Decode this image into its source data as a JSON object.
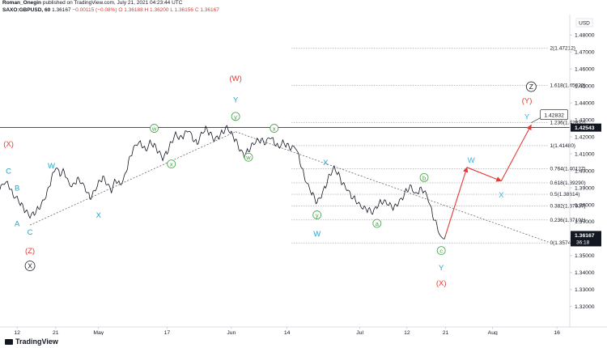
{
  "header": {
    "author": "Roman_Onegin",
    "published_text": " published on TradingView.com, July 21, 2021 04:23:44 UTC",
    "symbol": "SAXO:GBPUSD, 60",
    "last": "1.36167",
    "change": "−0.00115 (−0.08%)",
    "o": "O 1.36188",
    "h": "H 1.36200",
    "l": "L 1.36156",
    "c": "C 1.36167"
  },
  "footer": {
    "logo": "TradingView"
  },
  "chart_data": {
    "type": "line",
    "currency": "USD",
    "ylim": [
      1.308,
      1.492
    ],
    "y_ticks": [
      1.32,
      1.33,
      1.34,
      1.35,
      1.36,
      1.37,
      1.38,
      1.39,
      1.4,
      1.41,
      1.42,
      1.43,
      1.44,
      1.45,
      1.46,
      1.47,
      1.48
    ],
    "x_ticks": [
      {
        "label": "12",
        "t": 1
      },
      {
        "label": "21",
        "t": 10
      },
      {
        "label": "May",
        "t": 20
      },
      {
        "label": "17",
        "t": 36
      },
      {
        "label": "Jun",
        "t": 51
      },
      {
        "label": "14",
        "t": 64
      },
      {
        "label": "Jul",
        "t": 81
      },
      {
        "label": "12",
        "t": 92
      },
      {
        "label": "21",
        "t": 101
      },
      {
        "label": "Aug",
        "t": 112
      },
      {
        "label": "16",
        "t": 127
      }
    ],
    "price_path": [
      [
        -3,
        1.389
      ],
      [
        -2,
        1.393
      ],
      [
        -1,
        1.392
      ],
      [
        0,
        1.386
      ],
      [
        1,
        1.384
      ],
      [
        2,
        1.38
      ],
      [
        3,
        1.376
      ],
      [
        4,
        1.373
      ],
      [
        5,
        1.375
      ],
      [
        6,
        1.378
      ],
      [
        7,
        1.382
      ],
      [
        8,
        1.387
      ],
      [
        9,
        1.395
      ],
      [
        10,
        1.402
      ],
      [
        11,
        1.398
      ],
      [
        12,
        1.4
      ],
      [
        13,
        1.393
      ],
      [
        14,
        1.391
      ],
      [
        15,
        1.395
      ],
      [
        16,
        1.393
      ],
      [
        17,
        1.389
      ],
      [
        18,
        1.384
      ],
      [
        19,
        1.388
      ],
      [
        20,
        1.393
      ],
      [
        21,
        1.396
      ],
      [
        22,
        1.392
      ],
      [
        23,
        1.388
      ],
      [
        24,
        1.395
      ],
      [
        25,
        1.392
      ],
      [
        26,
        1.396
      ],
      [
        27,
        1.405
      ],
      [
        28,
        1.412
      ],
      [
        29,
        1.416
      ],
      [
        30,
        1.416
      ],
      [
        31,
        1.412
      ],
      [
        32,
        1.417
      ],
      [
        33,
        1.415
      ],
      [
        34,
        1.411
      ],
      [
        35,
        1.407
      ],
      [
        36,
        1.411
      ],
      [
        37,
        1.417
      ],
      [
        38,
        1.422
      ],
      [
        39,
        1.419
      ],
      [
        40,
        1.421
      ],
      [
        41,
        1.424
      ],
      [
        42,
        1.419
      ],
      [
        43,
        1.416
      ],
      [
        44,
        1.422
      ],
      [
        45,
        1.425
      ],
      [
        46,
        1.422
      ],
      [
        47,
        1.418
      ],
      [
        48,
        1.42
      ],
      [
        49,
        1.423
      ],
      [
        50,
        1.426
      ],
      [
        51,
        1.422
      ],
      [
        52,
        1.418
      ],
      [
        53,
        1.412
      ],
      [
        54,
        1.409
      ],
      [
        55,
        1.412
      ],
      [
        56,
        1.416
      ],
      [
        57,
        1.418
      ],
      [
        58,
        1.418
      ],
      [
        59,
        1.416
      ],
      [
        60,
        1.42
      ],
      [
        61,
        1.417
      ],
      [
        62,
        1.414
      ],
      [
        63,
        1.417
      ],
      [
        64,
        1.415
      ],
      [
        65,
        1.413
      ],
      [
        66,
        1.414
      ],
      [
        67,
        1.406
      ],
      [
        68,
        1.397
      ],
      [
        69,
        1.391
      ],
      [
        70,
        1.386
      ],
      [
        71,
        1.381
      ],
      [
        72,
        1.385
      ],
      [
        73,
        1.391
      ],
      [
        74,
        1.398
      ],
      [
        75,
        1.402
      ],
      [
        76,
        1.398
      ],
      [
        77,
        1.392
      ],
      [
        78,
        1.389
      ],
      [
        79,
        1.385
      ],
      [
        80,
        1.383
      ],
      [
        81,
        1.38
      ],
      [
        82,
        1.378
      ],
      [
        83,
        1.377
      ],
      [
        84,
        1.375
      ],
      [
        85,
        1.379
      ],
      [
        86,
        1.382
      ],
      [
        87,
        1.382
      ],
      [
        88,
        1.38
      ],
      [
        89,
        1.378
      ],
      [
        90,
        1.381
      ],
      [
        91,
        1.384
      ],
      [
        92,
        1.389
      ],
      [
        93,
        1.391
      ],
      [
        94,
        1.386
      ],
      [
        95,
        1.389
      ],
      [
        96,
        1.388
      ],
      [
        97,
        1.383
      ],
      [
        98,
        1.374
      ],
      [
        99,
        1.368
      ],
      [
        100,
        1.36
      ],
      [
        101,
        1.362
      ]
    ],
    "projection": [
      [
        101,
        1.362
      ],
      [
        106,
        1.402
      ],
      [
        114,
        1.394
      ],
      [
        121,
        1.427
      ]
    ],
    "trendlines": [
      {
        "from": [
          4,
          1.368
        ],
        "to": [
          52,
          1.423
        ]
      },
      {
        "from": [
          52,
          1.423
        ],
        "to": [
          125,
          1.358
        ]
      }
    ],
    "fib_levels": [
      {
        "label": "2(1.47212)",
        "value": 1.47212
      },
      {
        "label": "1.618(1.45022)",
        "value": 1.45022
      },
      {
        "label": "1.236(1.42832)",
        "value": 1.42832
      },
      {
        "label": "1(1.41480)",
        "value": 1.4148
      },
      {
        "label": "0.764(1.40127)",
        "value": 1.40127
      },
      {
        "label": "0.618(1.39290)",
        "value": 1.3929
      },
      {
        "label": "0.5(1.38614)",
        "value": 1.38614
      },
      {
        "label": "0.382(1.37937)",
        "value": 1.37937
      },
      {
        "label": "0.236(1.37101)",
        "value": 1.37101
      },
      {
        "label": "0(1.35748)",
        "value": 1.35748
      }
    ],
    "annotations": [
      {
        "text": "(X)",
        "t": -1,
        "y": 1.416,
        "style": "red"
      },
      {
        "text": "C",
        "t": -1,
        "y": 1.4,
        "style": "blue"
      },
      {
        "text": "B",
        "t": 1,
        "y": 1.39,
        "style": "blue"
      },
      {
        "text": "A",
        "t": 1,
        "y": 1.369,
        "style": "blue"
      },
      {
        "text": "C",
        "t": 4,
        "y": 1.364,
        "style": "blue"
      },
      {
        "text": "(Z)",
        "t": 4,
        "y": 1.353,
        "style": "red"
      },
      {
        "text": "X",
        "t": 4,
        "y": 1.344,
        "style": "black-circle"
      },
      {
        "text": "W",
        "t": 9,
        "y": 1.403,
        "style": "blue"
      },
      {
        "text": "X",
        "t": 20,
        "y": 1.374,
        "style": "blue"
      },
      {
        "text": "w",
        "t": 33,
        "y": 1.425,
        "style": "green-circle"
      },
      {
        "text": "x",
        "t": 37,
        "y": 1.404,
        "style": "green-circle"
      },
      {
        "text": "(W)",
        "t": 52,
        "y": 1.4545,
        "style": "red"
      },
      {
        "text": "Y",
        "t": 52,
        "y": 1.442,
        "style": "blue"
      },
      {
        "text": "y",
        "t": 52,
        "y": 1.432,
        "style": "green-circle"
      },
      {
        "text": "w",
        "t": 55,
        "y": 1.408,
        "style": "green-circle"
      },
      {
        "text": "x",
        "t": 61,
        "y": 1.425,
        "style": "green-circle"
      },
      {
        "text": "X",
        "t": 73,
        "y": 1.405,
        "style": "blue"
      },
      {
        "text": "y",
        "t": 71,
        "y": 1.374,
        "style": "green-circle"
      },
      {
        "text": "W",
        "t": 71,
        "y": 1.363,
        "style": "blue"
      },
      {
        "text": "a",
        "t": 85,
        "y": 1.369,
        "style": "green-circle"
      },
      {
        "text": "b",
        "t": 96,
        "y": 1.396,
        "style": "green-circle"
      },
      {
        "text": "c",
        "t": 100,
        "y": 1.353,
        "style": "green-circle"
      },
      {
        "text": "Y",
        "t": 100,
        "y": 1.343,
        "style": "blue"
      },
      {
        "text": "(X)",
        "t": 100,
        "y": 1.334,
        "style": "red"
      },
      {
        "text": "W",
        "t": 107,
        "y": 1.4065,
        "style": "cyan"
      },
      {
        "text": "X",
        "t": 114,
        "y": 1.386,
        "style": "cyan"
      },
      {
        "text": "Y",
        "t": 120,
        "y": 1.432,
        "style": "cyan"
      },
      {
        "text": "(Y)",
        "t": 120,
        "y": 1.4415,
        "style": "red"
      },
      {
        "text": "Z",
        "t": 121,
        "y": 1.4495,
        "style": "black-circle"
      }
    ],
    "horizontal_line": {
      "value": 1.42543,
      "label": "1.42543"
    },
    "callout": {
      "value": 1.42832,
      "label": "1.42832"
    },
    "last_price": {
      "value": 1.36167,
      "label": "1.36167",
      "countdown": "36:18"
    }
  }
}
